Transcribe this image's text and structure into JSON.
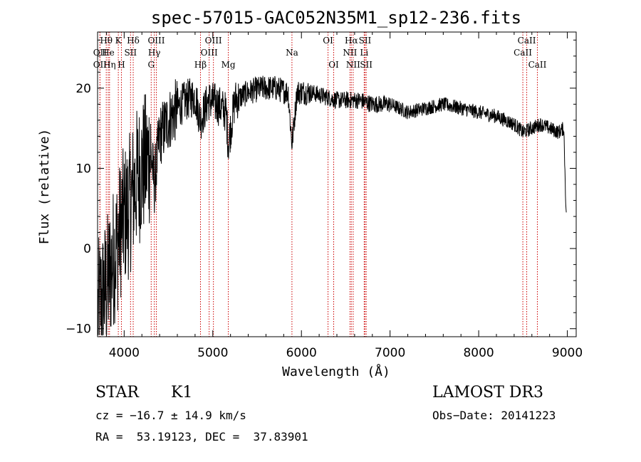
{
  "chart_data": {
    "type": "line",
    "title": "spec-57015-GAC052N35M1_sp12-236.fits",
    "xlabel": "Wavelength (Å)",
    "ylabel": "Flux (relative)",
    "xlim": [
      3700,
      9100
    ],
    "ylim": [
      -11,
      27
    ],
    "xticks": [
      4000,
      5000,
      6000,
      7000,
      8000,
      9000
    ],
    "xtick_labels": [
      "4000",
      "5000",
      "6000",
      "7000",
      "8000",
      "9000"
    ],
    "yticks": [
      -10,
      0,
      10,
      20
    ],
    "ytick_labels": [
      "−10",
      "0",
      "10",
      "20"
    ],
    "spectrum_anchors": {
      "x": [
        3700,
        3760,
        3820,
        3880,
        3930,
        3970,
        4000,
        4050,
        4100,
        4150,
        4200,
        4260,
        4300,
        4340,
        4400,
        4450,
        4500,
        4600,
        4700,
        4800,
        4861,
        4950,
        5050,
        5150,
        5175,
        5250,
        5400,
        5550,
        5700,
        5850,
        5893,
        5950,
        6100,
        6250,
        6400,
        6563,
        6650,
        6800,
        7000,
        7200,
        7400,
        7600,
        7800,
        8000,
        8200,
        8400,
        8500,
        8600,
        8700,
        8800,
        8900,
        8960,
        8990
      ],
      "y": [
        -8,
        -6,
        -4,
        -1,
        1,
        3,
        4,
        5,
        7,
        9,
        10,
        11,
        12,
        8,
        14,
        15,
        16,
        17.5,
        18.5,
        19,
        16,
        18.5,
        18,
        17,
        13,
        18.5,
        19.5,
        20,
        20,
        19.5,
        13,
        19.5,
        19.5,
        19,
        18.5,
        18.5,
        18.5,
        18,
        18,
        17,
        17.5,
        18,
        17.5,
        17,
        16.5,
        15.5,
        14.5,
        15,
        15.5,
        15,
        14.5,
        15,
        3
      ]
    },
    "spectral_lines": [
      {
        "label": "Hθ",
        "wavelength": 3798,
        "row": 1
      },
      {
        "label": "OII",
        "wavelength": 3727,
        "row": 2
      },
      {
        "label": "OII",
        "wavelength": 3727,
        "row": 3
      },
      {
        "label": "He",
        "wavelength": 3820,
        "row": 2
      },
      {
        "label": "Hη",
        "wavelength": 3835,
        "row": 3
      },
      {
        "label": "K",
        "wavelength": 3934,
        "row": 1
      },
      {
        "label": "H",
        "wavelength": 3969,
        "row": 3
      },
      {
        "label": "SII",
        "wavelength": 4072,
        "row": 2
      },
      {
        "label": "Hδ",
        "wavelength": 4102,
        "row": 1
      },
      {
        "label": "OIII",
        "wavelength": 4363,
        "row": 1
      },
      {
        "label": "Hγ",
        "wavelength": 4340,
        "row": 2
      },
      {
        "label": "G",
        "wavelength": 4305,
        "row": 3
      },
      {
        "label": "Hβ",
        "wavelength": 4861,
        "row": 3
      },
      {
        "label": "OIII",
        "wavelength": 5007,
        "row": 1
      },
      {
        "label": "OIII",
        "wavelength": 4959,
        "row": 2
      },
      {
        "label": "Mg",
        "wavelength": 5175,
        "row": 3
      },
      {
        "label": "Na",
        "wavelength": 5893,
        "row": 2
      },
      {
        "label": "OI",
        "wavelength": 6300,
        "row": 1
      },
      {
        "label": "OI",
        "wavelength": 6364,
        "row": 3
      },
      {
        "label": "Hα",
        "wavelength": 6563,
        "row": 1
      },
      {
        "label": "NII",
        "wavelength": 6548,
        "row": 2
      },
      {
        "label": "NII",
        "wavelength": 6584,
        "row": 3
      },
      {
        "label": "SII",
        "wavelength": 6717,
        "row": 1
      },
      {
        "label": "Li",
        "wavelength": 6708,
        "row": 2
      },
      {
        "label": "SII",
        "wavelength": 6731,
        "row": 3
      },
      {
        "label": "CaII",
        "wavelength": 8542,
        "row": 1
      },
      {
        "label": "CaII",
        "wavelength": 8498,
        "row": 2
      },
      {
        "label": "CaII",
        "wavelength": 8662,
        "row": 3
      }
    ]
  },
  "info": {
    "class": "STAR",
    "subclass": "K1",
    "survey": "LAMOST DR3",
    "cz": "cz = −16.7 ± 14.9 km/s",
    "obs_date": "Obs−Date: 20141223",
    "coords": "RA =  53.19123, DEC =  37.83901"
  },
  "colors": {
    "spectrum": "#000000",
    "line_marker": "#cc0000",
    "axis": "#000000"
  }
}
